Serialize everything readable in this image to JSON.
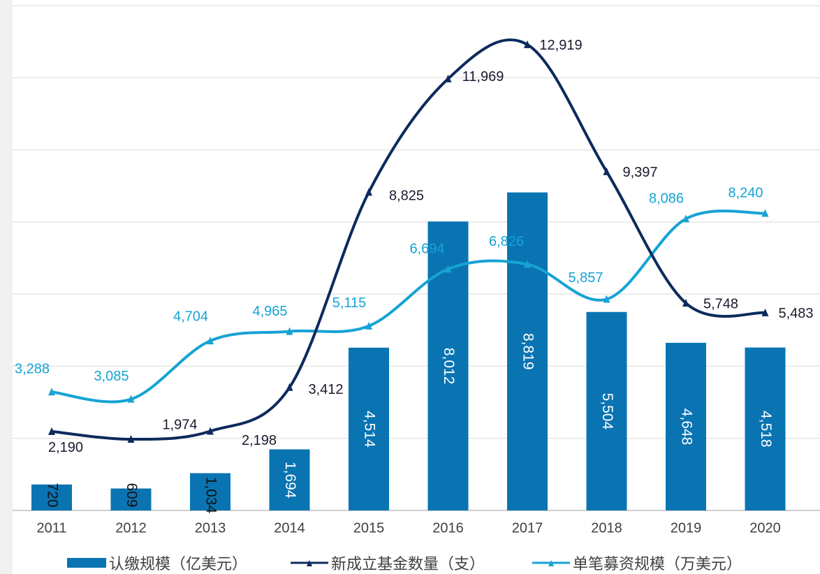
{
  "chart_data": {
    "type": "bar+line",
    "categories": [
      "2011",
      "2012",
      "2013",
      "2014",
      "2015",
      "2016",
      "2017",
      "2018",
      "2019",
      "2020"
    ],
    "series": [
      {
        "name": "认缴规模（亿美元）",
        "type": "bar",
        "color": "#0a74b3",
        "values": [
          720,
          609,
          1034,
          1694,
          4514,
          8012,
          8819,
          5504,
          4648,
          4518
        ],
        "labels": [
          "720",
          "609",
          "1,034",
          "1,694",
          "4,514",
          "8,012",
          "8,819",
          "5,504",
          "4,648",
          "4,518"
        ]
      },
      {
        "name": "新成立基金数量（支）",
        "type": "line",
        "color": "#0c2a5c",
        "values": [
          2190,
          1974,
          2198,
          3412,
          8825,
          11969,
          12919,
          9397,
          5748,
          5483
        ],
        "labels": [
          "2,190",
          "1,974",
          "2,198",
          "3,412",
          "8,825",
          "11,969",
          "12,919",
          "9,397",
          "5,748",
          "5,483"
        ]
      },
      {
        "name": "单笔募资规模（万美元）",
        "type": "line",
        "color": "#16a3d4",
        "values": [
          3288,
          3085,
          4704,
          4965,
          5115,
          6694,
          6826,
          5857,
          8086,
          8240
        ],
        "labels": [
          "3,288",
          "3,085",
          "4,704",
          "4,965",
          "5,115",
          "6,694",
          "6,826",
          "5,857",
          "8,086",
          "8,240"
        ]
      }
    ],
    "grid": true,
    "legend_position": "bottom"
  }
}
